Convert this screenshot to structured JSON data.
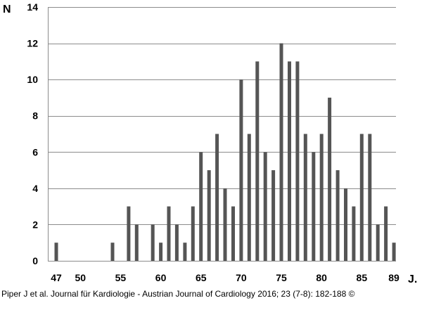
{
  "chart_data": {
    "type": "bar",
    "ylabel": "N",
    "xlabel": "J.",
    "ylim": [
      0,
      14
    ],
    "y_ticks": [
      0,
      2,
      4,
      6,
      8,
      10,
      12,
      14
    ],
    "x_tick_labels": [
      "47",
      "50",
      "55",
      "60",
      "65",
      "70",
      "75",
      "80",
      "85",
      "89"
    ],
    "grid": true,
    "bar_color": "#555555",
    "categories": [
      47,
      48,
      49,
      50,
      51,
      52,
      53,
      54,
      55,
      56,
      57,
      58,
      59,
      60,
      61,
      62,
      63,
      64,
      65,
      66,
      67,
      68,
      69,
      70,
      71,
      72,
      73,
      74,
      75,
      76,
      77,
      78,
      79,
      80,
      81,
      82,
      83,
      84,
      85,
      86,
      87,
      88,
      89
    ],
    "values": [
      1,
      0,
      0,
      0,
      0,
      0,
      0,
      1,
      0,
      3,
      2,
      0,
      2,
      1,
      3,
      2,
      1,
      3,
      6,
      5,
      7,
      4,
      3,
      10,
      7,
      11,
      6,
      5,
      12,
      11,
      11,
      7,
      6,
      7,
      9,
      5,
      4,
      3,
      7,
      7,
      2,
      3,
      1
    ]
  },
  "caption": "Piper J et al. Journal für Kardiologie - Austrian Journal of Cardiology 2016; 23 (7-8): 182-188 ©"
}
